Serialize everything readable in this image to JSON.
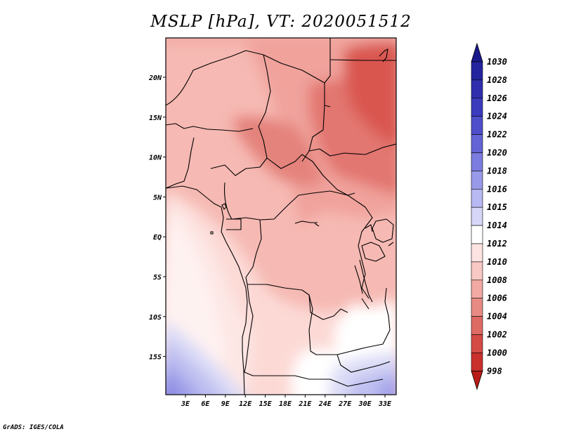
{
  "title": "MSLP [hPa], VT: 2020051512",
  "credit": "GrADS: IGES/COLA",
  "map": {
    "lat_labels": [
      "20N",
      "15N",
      "10N",
      "5N",
      "EQ",
      "5S",
      "10S",
      "15S"
    ],
    "lon_labels": [
      "3E",
      "6E",
      "9E",
      "12E",
      "15E",
      "18E",
      "21E",
      "24E",
      "27E",
      "30E",
      "33E"
    ]
  },
  "colorbar": {
    "labels": [
      "1030",
      "1028",
      "1026",
      "1024",
      "1022",
      "1020",
      "1018",
      "1016",
      "1015",
      "1014",
      "1012",
      "1010",
      "1008",
      "1006",
      "1004",
      "1002",
      "1000",
      "998"
    ],
    "colors": [
      "#1a1a8c",
      "#24249e",
      "#2f2fae",
      "#3b3bbd",
      "#4f4fcb",
      "#6464d6",
      "#7b7be0",
      "#9999ea",
      "#b8b8f2",
      "#d6d6f8",
      "#ffffff",
      "#fde3e1",
      "#f8c8c4",
      "#f2a9a3",
      "#e88a84",
      "#de6a64",
      "#d44b45",
      "#c9302b",
      "#b81c18"
    ]
  }
}
